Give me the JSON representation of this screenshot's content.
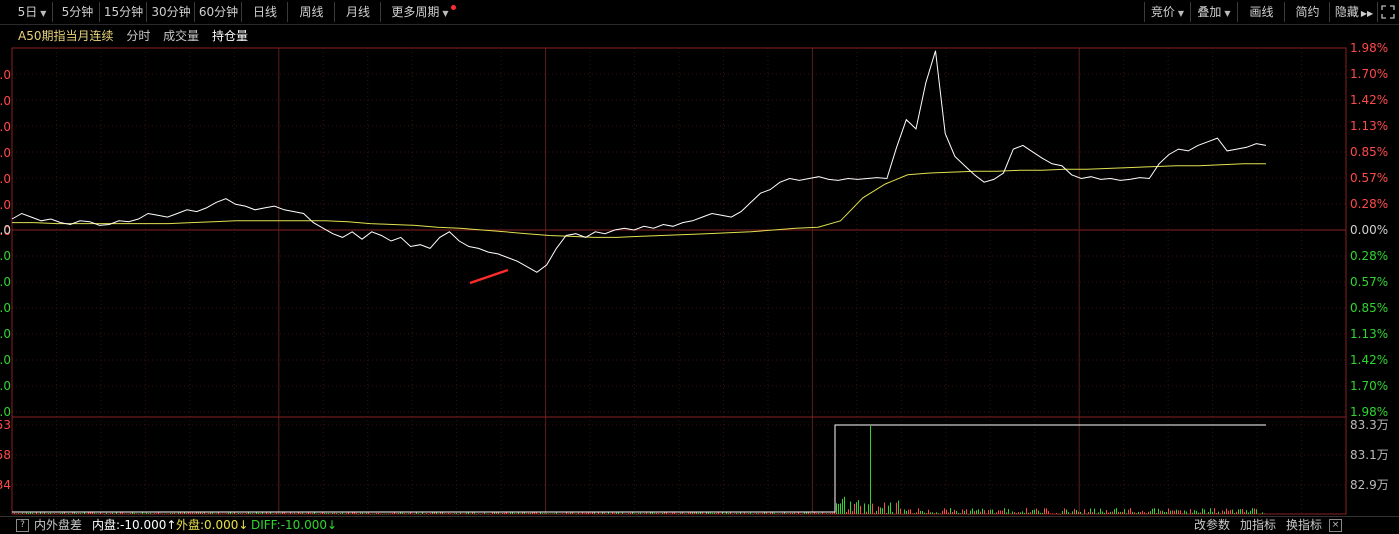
{
  "toolbar": {
    "period": "5日",
    "min5": "5分钟",
    "min15": "15分钟",
    "min30": "30分钟",
    "min60": "60分钟",
    "day": "日线",
    "week": "周线",
    "month": "月线",
    "more": "更多周期",
    "bid": "竞价",
    "overlay": "叠加",
    "draw": "画线",
    "about": "简约",
    "hide": "隐藏"
  },
  "subtitle": {
    "name": "A50期指当月连续",
    "tab_intraday": "分时",
    "tab_volume": "成交量",
    "tab_oi": "持仓量"
  },
  "right_axis": {
    "up": [
      "1.98%",
      "1.70%",
      "1.42%",
      "1.13%",
      "0.85%",
      "0.57%",
      "0.28%"
    ],
    "zero": "0.00%",
    "down": [
      "0.28%",
      "0.57%",
      "0.85%",
      "1.13%",
      "1.42%",
      "1.70%",
      "1.98%"
    ],
    "oi": [
      "83.3万",
      "83.1万",
      "82.9万"
    ]
  },
  "left_axis": {
    "main": [
      ".0",
      ".0",
      ".0",
      ".0",
      ".0",
      ".0",
      ".0",
      ".0",
      ".0",
      ".0",
      ".0",
      ".0",
      ".0",
      ".0"
    ],
    "zero": "0.0",
    "lower": [
      "53",
      "58",
      "34"
    ]
  },
  "bottom": {
    "help": "?",
    "indicator": "内外盘差",
    "inner": "内盘:-10.000↑",
    "outer": "外盘:0.000↓",
    "diff": "DIFF:-10.000↓",
    "modify": "改参数",
    "add": "加指标",
    "switch": "换指标",
    "close": "×"
  },
  "colors": {
    "up": "#ff4a4a",
    "down": "#2fd62f",
    "price_line": "#ffffff",
    "avg_line": "#e0e050",
    "grid": "#3a1010",
    "drawing": "#ff2b2b"
  },
  "chart_data": {
    "type": "line",
    "x_labels": [],
    "y_percent_range": [
      -1.98,
      1.98
    ],
    "day_count": 5,
    "series": [
      {
        "name": "",
        "values": [
          0.12,
          0.18,
          0.14,
          0.1,
          0.12,
          0.08,
          0.06,
          0.1,
          0.09,
          0.05,
          0.06,
          0.1,
          0.09,
          0.12,
          0.18,
          0.16,
          0.14,
          0.18,
          0.22,
          0.2,
          0.24,
          0.3,
          0.34,
          0.28,
          0.26,
          0.22,
          0.24,
          0.26,
          0.22,
          0.2,
          0.18,
          0.08,
          0.02,
          -0.04,
          -0.08,
          -0.02,
          -0.1,
          -0.02,
          -0.06,
          -0.12,
          -0.08,
          -0.18,
          -0.16,
          -0.2,
          -0.08,
          -0.02,
          -0.12,
          -0.18,
          -0.2,
          -0.24,
          -0.26,
          -0.3,
          -0.34,
          -0.4,
          -0.46,
          -0.38,
          -0.2,
          -0.06,
          -0.04,
          -0.08,
          -0.02,
          -0.04,
          0.0,
          0.02,
          0.0,
          0.04,
          0.02,
          0.06,
          0.04,
          0.08,
          0.1,
          0.14,
          0.18,
          0.16,
          0.14,
          0.2,
          0.3,
          0.4,
          0.44,
          0.52,
          0.56,
          0.54,
          0.56,
          0.58,
          0.55,
          0.54,
          0.56,
          0.55,
          0.56,
          0.57,
          0.56,
          0.9,
          1.2,
          1.1,
          1.6,
          1.95,
          1.05,
          0.8,
          0.7,
          0.6,
          0.52,
          0.55,
          0.62,
          0.88,
          0.92,
          0.85,
          0.78,
          0.72,
          0.7,
          0.6,
          0.56,
          0.58,
          0.55,
          0.56,
          0.54,
          0.55,
          0.57,
          0.56,
          0.72,
          0.82,
          0.88,
          0.86,
          0.92,
          0.96,
          1.0,
          0.86,
          0.88,
          0.9,
          0.94,
          0.92
        ]
      },
      {
        "name": "",
        "values": [
          0.08,
          0.08,
          0.07,
          0.07,
          0.07,
          0.07,
          0.07,
          0.07,
          0.08,
          0.09,
          0.1,
          0.1,
          0.1,
          0.1,
          0.1,
          0.09,
          0.07,
          0.06,
          0.05,
          0.03,
          0.02,
          0.0,
          -0.02,
          -0.04,
          -0.06,
          -0.07,
          -0.08,
          -0.08,
          -0.07,
          -0.06,
          -0.05,
          -0.04,
          -0.03,
          -0.02,
          0.0,
          0.02,
          0.03,
          0.1,
          0.35,
          0.5,
          0.6,
          0.62,
          0.63,
          0.64,
          0.64,
          0.65,
          0.65,
          0.66,
          0.66,
          0.67,
          0.68,
          0.69,
          0.7,
          0.7,
          0.71,
          0.72,
          0.72
        ]
      }
    ],
    "oi_ylim_label": [
      "82.9万",
      "83.3万"
    ]
  }
}
